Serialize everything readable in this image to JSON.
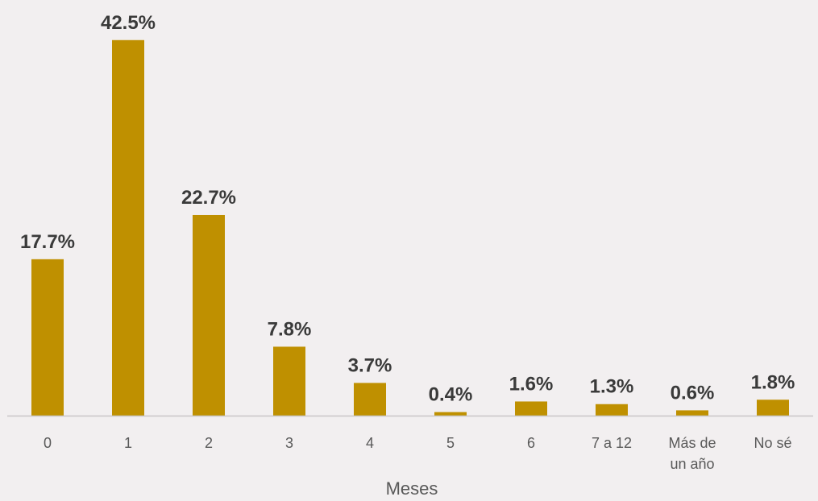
{
  "chart_data": {
    "type": "bar",
    "categories": [
      "0",
      "1",
      "2",
      "3",
      "4",
      "5",
      "6",
      "7 a 12",
      "Más de\nun año",
      "No sé"
    ],
    "values": [
      17.7,
      42.5,
      22.7,
      7.8,
      3.7,
      0.4,
      1.6,
      1.3,
      0.6,
      1.8
    ],
    "data_labels": [
      "17.7%",
      "42.5%",
      "22.7%",
      "7.8%",
      "3.7%",
      "0.4%",
      "1.6%",
      "1.3%",
      "0.6%",
      "1.8%"
    ],
    "title": "",
    "xlabel": "Meses",
    "ylabel": "",
    "ylim": [
      0,
      45
    ],
    "grid": false,
    "legend": "none",
    "bar_color": "#bf9000"
  }
}
